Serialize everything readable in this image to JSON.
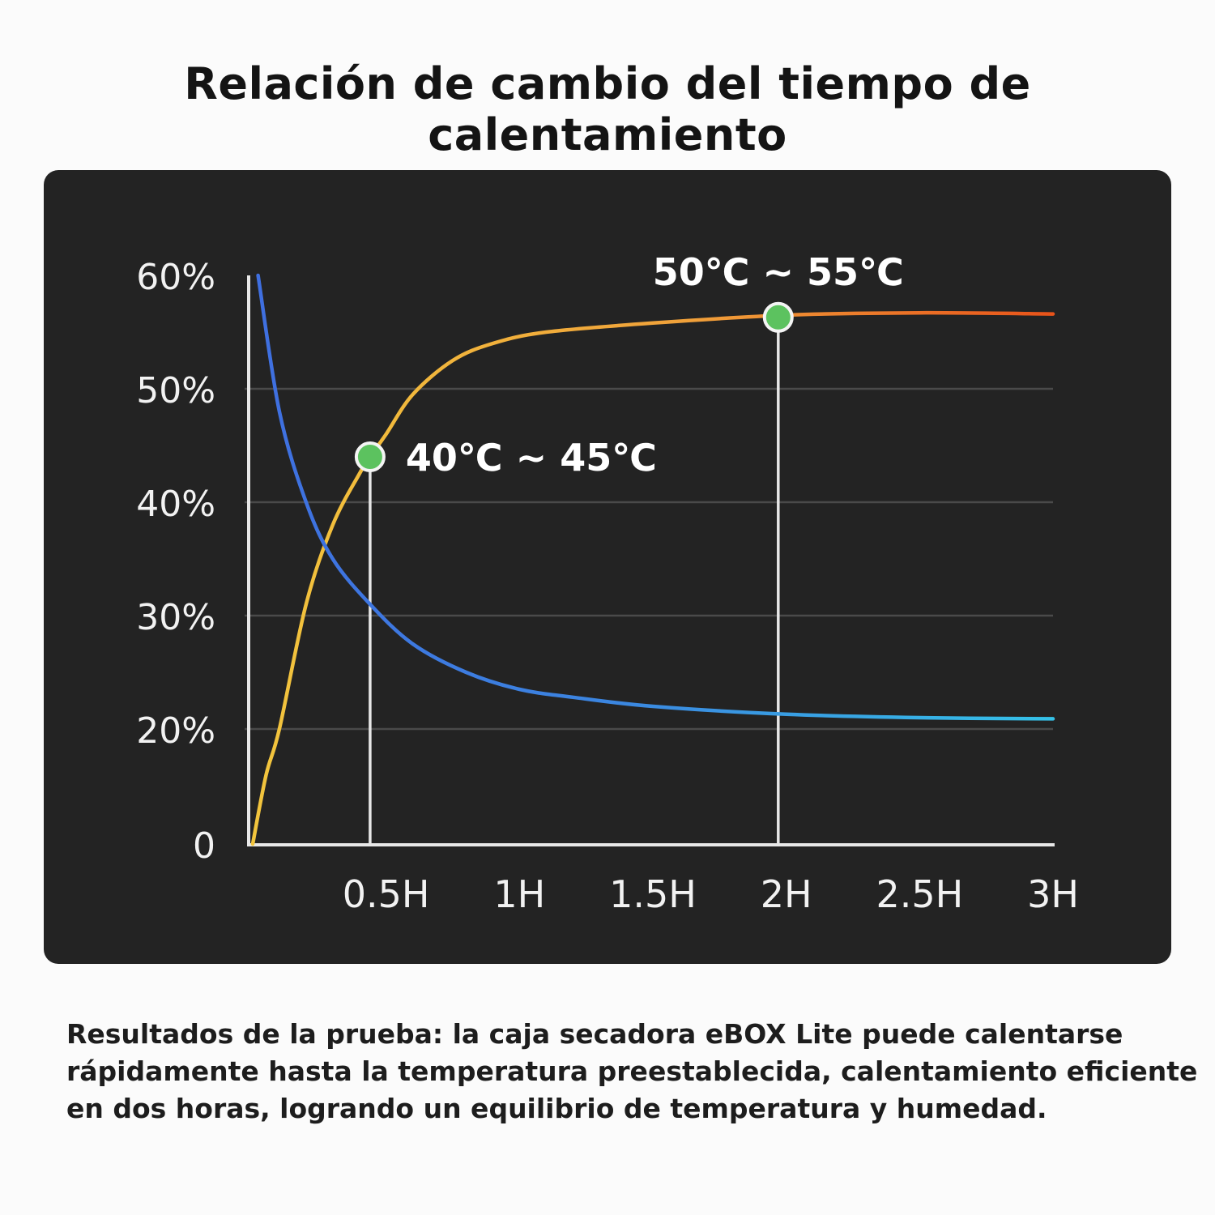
{
  "title": "Relación de cambio del tiempo de calentamiento",
  "caption_lines": [
    "Resultados de la prueba: la caja secadora eBOX Lite puede calentarse",
    "rápidamente hasta la temperatura preestablecida, calentamiento eficiente",
    "en dos horas, logrando un equilibrio de temperatura y humedad."
  ],
  "colors": {
    "panel_bg": "#232323",
    "temperature_start": "#f2c53d",
    "temperature_end": "#e8531a",
    "humidity_start": "#3f6fe0",
    "humidity_end": "#35c2e8",
    "marker": "#5cc25f"
  },
  "chart_data": {
    "type": "line",
    "x_ticks": [
      "0.5H",
      "1H",
      "1.5H",
      "2H",
      "2.5H",
      "3H"
    ],
    "y_ticks": [
      "0",
      "20%",
      "30%",
      "40%",
      "50%",
      "60%"
    ],
    "xlim": [
      0,
      3
    ],
    "ylim": [
      0,
      60
    ],
    "grid": true,
    "series": [
      {
        "key": "temperature",
        "x": [
          0,
          0.05,
          0.1,
          0.2,
          0.3,
          0.4,
          0.44,
          0.5,
          0.6,
          0.75,
          0.9,
          1.1,
          1.5,
          2.0,
          2.5,
          3.0
        ],
        "values": [
          0,
          12,
          20,
          31,
          38,
          42.5,
          44,
          46,
          49.5,
          52.5,
          54,
          55,
          55.8,
          56.5,
          56.7,
          56.6
        ]
      },
      {
        "key": "humidity",
        "x": [
          0.02,
          0.1,
          0.2,
          0.3,
          0.44,
          0.6,
          0.8,
          1.0,
          1.2,
          1.5,
          2.0,
          2.5,
          3.0
        ],
        "values": [
          60,
          48,
          40,
          35,
          31,
          27.5,
          25,
          23.5,
          22.8,
          22,
          21.3,
          21,
          20.9
        ]
      }
    ],
    "annotations": [
      {
        "x": 0.44,
        "y": 44,
        "label": "40℃ ~ 45℃"
      },
      {
        "x": 1.97,
        "y": 56.3,
        "label": "50℃ ~ 55℃"
      }
    ]
  }
}
